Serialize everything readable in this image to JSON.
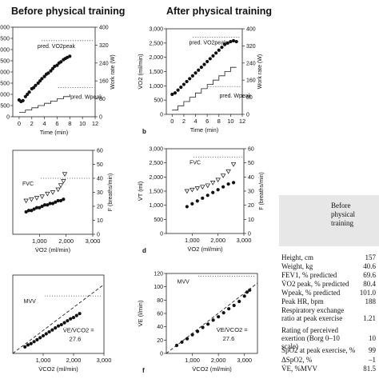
{
  "headers": {
    "left": "Before physical training",
    "right": "After physical training"
  },
  "charts": [
    {
      "id": "a",
      "panel_letter": "",
      "type": "scatter",
      "xlabel": "Time (min)",
      "ylabel": "",
      "y2label": "Work rate (W)",
      "xlim": [
        -1,
        12
      ],
      "xticks": [
        "0",
        "2",
        "4",
        "6",
        "8",
        "10",
        "12"
      ],
      "ylim": [
        0,
        4000
      ],
      "yticks": [
        "0",
        "500",
        "1,000",
        "1,500",
        "2,000",
        "2,500",
        "3,000",
        "3,500",
        "4,000"
      ],
      "y2lim": [
        0,
        400
      ],
      "y2ticks": [
        "0",
        "80",
        "160",
        "240",
        "320",
        "400"
      ],
      "ref_label": "pred. V̇O2peak",
      "ref_value": 3400,
      "ref2_label": "pred. Wpeak",
      "ref2_value": 130,
      "points": [
        [
          0,
          750
        ],
        [
          0.3,
          680
        ],
        [
          0.6,
          720
        ],
        [
          1,
          900
        ],
        [
          1.3,
          1000
        ],
        [
          1.6,
          1100
        ],
        [
          2,
          1250
        ],
        [
          2.3,
          1300
        ],
        [
          2.6,
          1400
        ],
        [
          3,
          1500
        ],
        [
          3.3,
          1600
        ],
        [
          3.6,
          1700
        ],
        [
          4,
          1800
        ],
        [
          4.3,
          1900
        ],
        [
          4.6,
          1950
        ],
        [
          5,
          2050
        ],
        [
          5.3,
          2150
        ],
        [
          5.6,
          2250
        ],
        [
          6,
          2300
        ],
        [
          6.3,
          2400
        ],
        [
          6.6,
          2450
        ],
        [
          7,
          2550
        ],
        [
          7.3,
          2600
        ],
        [
          7.6,
          2650
        ],
        [
          8,
          2700
        ]
      ],
      "work_rate_steps": [
        [
          0,
          20
        ],
        [
          1,
          20
        ],
        [
          1,
          30
        ],
        [
          2,
          30
        ],
        [
          2,
          40
        ],
        [
          3,
          40
        ],
        [
          3,
          50
        ],
        [
          4,
          50
        ],
        [
          4,
          60
        ],
        [
          5,
          60
        ],
        [
          5,
          70
        ],
        [
          6,
          70
        ],
        [
          6,
          80
        ],
        [
          7,
          80
        ],
        [
          7,
          90
        ],
        [
          8,
          90
        ],
        [
          8,
          100
        ]
      ]
    },
    {
      "id": "b",
      "panel_letter": "b",
      "type": "scatter",
      "xlabel": "Time (min)",
      "ylabel": "V̇O2 (ml/min)",
      "y2label": "Work rate (W)",
      "xlim": [
        -1,
        12
      ],
      "xticks": [
        "0",
        "2",
        "4",
        "6",
        "8",
        "10",
        "12"
      ],
      "ylim": [
        0,
        3000
      ],
      "yticks": [
        "0",
        "500",
        "1,000",
        "1,500",
        "2,000",
        "2,500",
        "3,000"
      ],
      "y2lim": [
        0,
        400
      ],
      "y2ticks": [
        "0",
        "80",
        "160",
        "240",
        "320",
        "400"
      ],
      "ref_label": "pred. V̇O2peak",
      "ref_value": 2700,
      "ref2_label": "pred. Wpeak",
      "ref2_value": 130,
      "points": [
        [
          0,
          700
        ],
        [
          0.5,
          750
        ],
        [
          1,
          850
        ],
        [
          1.5,
          950
        ],
        [
          2,
          1050
        ],
        [
          2.5,
          1150
        ],
        [
          3,
          1250
        ],
        [
          3.5,
          1350
        ],
        [
          4,
          1450
        ],
        [
          4.5,
          1550
        ],
        [
          5,
          1650
        ],
        [
          5.5,
          1750
        ],
        [
          6,
          1850
        ],
        [
          6.5,
          1950
        ],
        [
          7,
          2050
        ],
        [
          7.5,
          2150
        ],
        [
          8,
          2250
        ],
        [
          8.5,
          2350
        ],
        [
          9,
          2450
        ],
        [
          9.5,
          2500
        ],
        [
          10,
          2550
        ],
        [
          10.5,
          2580
        ],
        [
          11,
          2550
        ]
      ],
      "work_rate_steps": [
        [
          0,
          20
        ],
        [
          1,
          20
        ],
        [
          1,
          40
        ],
        [
          2,
          40
        ],
        [
          2,
          60
        ],
        [
          3,
          60
        ],
        [
          3,
          80
        ],
        [
          4,
          80
        ],
        [
          4,
          100
        ],
        [
          5,
          100
        ],
        [
          5,
          120
        ],
        [
          6,
          120
        ],
        [
          6,
          140
        ],
        [
          7,
          140
        ],
        [
          7,
          160
        ],
        [
          8,
          160
        ],
        [
          8,
          180
        ],
        [
          9,
          180
        ],
        [
          9,
          200
        ],
        [
          10,
          200
        ],
        [
          10,
          220
        ],
        [
          11,
          220
        ]
      ]
    },
    {
      "id": "c",
      "panel_letter": "",
      "type": "scatter",
      "xlabel": "V̇O2 (ml/min)",
      "ylabel": "",
      "y2label": "F (breaths/min)",
      "xlim": [
        0,
        3000
      ],
      "xticks": [
        "1,000",
        "2,000",
        "3,000"
      ],
      "y2lim": [
        0,
        60
      ],
      "y2ticks": [
        "0",
        "10",
        "20",
        "30",
        "40",
        "50",
        "60"
      ],
      "ref_label": "FVC",
      "ref_value": 40,
      "series": [
        {
          "marker": "filled",
          "points": [
            [
              500,
              16
            ],
            [
              600,
              17
            ],
            [
              700,
              17
            ],
            [
              800,
              18
            ],
            [
              900,
              19
            ],
            [
              1000,
              19
            ],
            [
              1100,
              20
            ],
            [
              1200,
              21
            ],
            [
              1300,
              21
            ],
            [
              1400,
              22
            ],
            [
              1500,
              22
            ],
            [
              1600,
              23
            ],
            [
              1700,
              24
            ],
            [
              1800,
              24
            ],
            [
              1900,
              25
            ]
          ]
        },
        {
          "marker": "open-triangle",
          "points": [
            [
              500,
              24
            ],
            [
              700,
              25
            ],
            [
              900,
              26
            ],
            [
              1100,
              27
            ],
            [
              1300,
              29
            ],
            [
              1500,
              30
            ],
            [
              1700,
              32
            ],
            [
              1800,
              35
            ],
            [
              1900,
              38
            ],
            [
              1950,
              43
            ]
          ]
        }
      ]
    },
    {
      "id": "d",
      "panel_letter": "d",
      "type": "scatter",
      "xlabel": "V̇O2 (ml/min)",
      "ylabel": "V̇T (ml)",
      "y2label": "F (breaths/min)",
      "xlim": [
        0,
        3000
      ],
      "xticks": [
        "1,000",
        "2,000",
        "3,000"
      ],
      "ylim": [
        0,
        3000
      ],
      "yticks": [
        "0",
        "500",
        "1,000",
        "1,500",
        "2,000",
        "2,500",
        "3,000"
      ],
      "y2lim": [
        0,
        60
      ],
      "y2ticks": [
        "0",
        "10",
        "20",
        "30",
        "40",
        "50",
        "60"
      ],
      "ref_label": "FVC",
      "ref_value": 2700,
      "series": [
        {
          "marker": "filled",
          "points": [
            [
              800,
              950
            ],
            [
              1000,
              1050
            ],
            [
              1200,
              1150
            ],
            [
              1400,
              1250
            ],
            [
              1600,
              1350
            ],
            [
              1800,
              1450
            ],
            [
              2000,
              1550
            ],
            [
              2200,
              1650
            ],
            [
              2400,
              1750
            ],
            [
              2600,
              1800
            ]
          ]
        },
        {
          "marker": "open-triangle",
          "points": [
            [
              800,
              1500
            ],
            [
              1000,
              1550
            ],
            [
              1200,
              1600
            ],
            [
              1400,
              1650
            ],
            [
              1600,
              1700
            ],
            [
              1800,
              1800
            ],
            [
              2000,
              1900
            ],
            [
              2200,
              2050
            ],
            [
              2400,
              2200
            ],
            [
              2600,
              2450
            ]
          ]
        }
      ]
    },
    {
      "id": "e",
      "panel_letter": "",
      "type": "scatter",
      "xlabel": "V̇CO2 (ml/min)",
      "ylabel": "",
      "xlim": [
        0,
        3000
      ],
      "xticks": [
        "1,000",
        "2,000",
        "3,000"
      ],
      "ylim": [
        0,
        120
      ],
      "ref_label": "MVV",
      "ref_value": 88,
      "slope_label_1": "V̇E/V̇CO2 =",
      "slope_label_2": "27.6",
      "points": [
        [
          400,
          10
        ],
        [
          500,
          13
        ],
        [
          600,
          15
        ],
        [
          700,
          18
        ],
        [
          800,
          21
        ],
        [
          900,
          24
        ],
        [
          1000,
          27
        ],
        [
          1100,
          30
        ],
        [
          1200,
          33
        ],
        [
          1300,
          36
        ],
        [
          1400,
          39
        ],
        [
          1500,
          42
        ],
        [
          1600,
          44
        ],
        [
          1700,
          47
        ],
        [
          1800,
          50
        ],
        [
          1900,
          53
        ],
        [
          2000,
          55
        ],
        [
          2100,
          58
        ],
        [
          2200,
          61
        ]
      ]
    },
    {
      "id": "f",
      "panel_letter": "f",
      "type": "scatter",
      "xlabel": "V̇CO2 (ml/min)",
      "ylabel": "V̇E (l/min)",
      "xlim": [
        0,
        3500
      ],
      "xticks": [
        "1,000",
        "2,000",
        "3,000"
      ],
      "ylim": [
        0,
        120
      ],
      "yticks": [
        "0",
        "20",
        "40",
        "60",
        "80",
        "100",
        "120"
      ],
      "ref_label": "MVV",
      "ref_value": 116,
      "slope_label_1": "V̇E/V̇CO2 =",
      "slope_label_2": "27.6",
      "points": [
        [
          400,
          12
        ],
        [
          600,
          17
        ],
        [
          800,
          22
        ],
        [
          1000,
          28
        ],
        [
          1200,
          33
        ],
        [
          1400,
          39
        ],
        [
          1600,
          44
        ],
        [
          1800,
          50
        ],
        [
          2000,
          55
        ],
        [
          2200,
          61
        ],
        [
          2400,
          67
        ],
        [
          2600,
          72
        ],
        [
          2800,
          78
        ],
        [
          3000,
          86
        ],
        [
          3100,
          92
        ],
        [
          3200,
          95
        ]
      ]
    }
  ],
  "table": {
    "header": "Before physical training",
    "rows": [
      {
        "label": "Height, cm",
        "value": "157"
      },
      {
        "label": "Weight, kg",
        "value": "40.6"
      },
      {
        "label": "FEV1, % predicted",
        "value": "69.6"
      },
      {
        "label": "V̇O2 peak, % predicted",
        "value": "80.4"
      },
      {
        "label": "Wpeak, % predicted",
        "value": "101.0"
      },
      {
        "label": "Peak HR, bpm",
        "value": "188"
      },
      {
        "label": "Respiratory exchange ratio at peak exercise",
        "value": "1.21"
      },
      {
        "label": "Rating of perceived exertion (Borg 0–10 scale)",
        "value": "10"
      },
      {
        "label": "SpO2 at peak exercise, %",
        "value": "99"
      },
      {
        "label": "ΔSpO2, %",
        "value": "–1"
      },
      {
        "label": "V̇E, %MVV",
        "value": "81.5"
      }
    ]
  }
}
